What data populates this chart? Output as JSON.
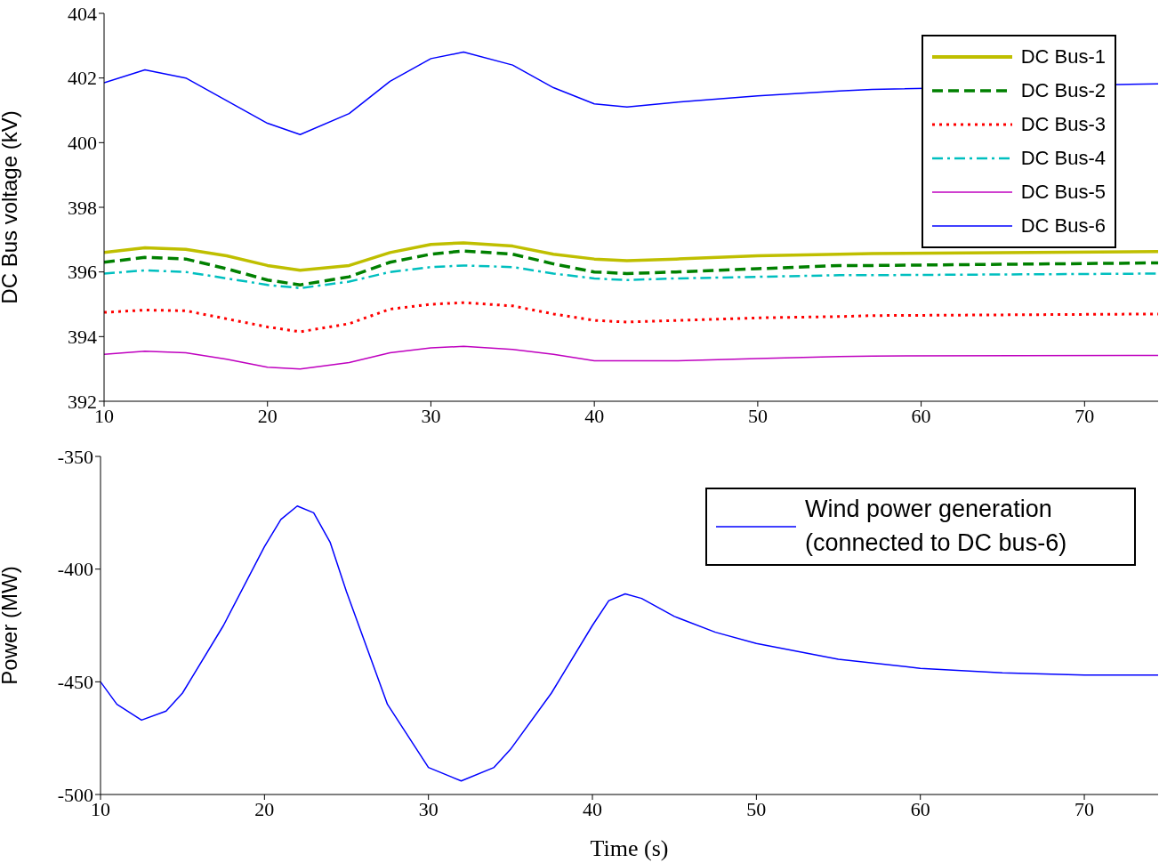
{
  "chart_data": [
    {
      "type": "line",
      "ylabel": "DC Bus voltage (kV)",
      "x": [
        10,
        12.5,
        15,
        17.5,
        20,
        22,
        25,
        27.5,
        30,
        32,
        35,
        37.5,
        40,
        42,
        45,
        50,
        55,
        57,
        74.5
      ],
      "series": [
        {
          "name": "DC Bus-1",
          "color": "#bfbf00",
          "line_style": "solid",
          "values": [
            396.6,
            396.75,
            396.7,
            396.5,
            396.2,
            396.05,
            396.2,
            396.6,
            396.85,
            396.9,
            396.8,
            396.55,
            396.4,
            396.35,
            396.4,
            396.5,
            396.55,
            396.57,
            396.63
          ]
        },
        {
          "name": "DC Bus-2",
          "color": "#008000",
          "line_style": "dashed",
          "values": [
            396.3,
            396.45,
            396.4,
            396.1,
            395.75,
            395.6,
            395.85,
            396.3,
            396.55,
            396.65,
            396.55,
            396.25,
            396.0,
            395.95,
            396.0,
            396.1,
            396.2,
            396.2,
            396.28
          ]
        },
        {
          "name": "DC Bus-3",
          "color": "#ff0000",
          "line_style": "dotted",
          "values": [
            394.75,
            394.82,
            394.8,
            394.55,
            394.3,
            394.15,
            394.4,
            394.85,
            395.0,
            395.05,
            394.95,
            394.7,
            394.5,
            394.45,
            394.5,
            394.58,
            394.62,
            394.65,
            394.7
          ]
        },
        {
          "name": "DC Bus-4",
          "color": "#00bfbf",
          "line_style": "dashdot",
          "values": [
            395.95,
            396.05,
            396.0,
            395.8,
            395.6,
            395.5,
            395.7,
            396.0,
            396.15,
            396.2,
            396.15,
            395.95,
            395.8,
            395.75,
            395.8,
            395.85,
            395.9,
            395.9,
            395.95
          ]
        },
        {
          "name": "DC Bus-5",
          "color": "#bf00bf",
          "line_style": "solid",
          "values": [
            393.45,
            393.55,
            393.5,
            393.3,
            393.05,
            393.0,
            393.2,
            393.5,
            393.65,
            393.7,
            393.6,
            393.45,
            393.25,
            393.25,
            393.25,
            393.32,
            393.38,
            393.4,
            393.42
          ]
        },
        {
          "name": "DC Bus-6",
          "color": "#0000ff",
          "line_style": "solid",
          "values": [
            401.85,
            402.25,
            402.0,
            401.3,
            400.6,
            400.25,
            400.9,
            401.9,
            402.6,
            402.8,
            402.4,
            401.7,
            401.2,
            401.1,
            401.25,
            401.45,
            401.6,
            401.65,
            401.82
          ]
        }
      ],
      "xlim": [
        10,
        74.5
      ],
      "xticks": [
        10,
        20,
        30,
        40,
        50,
        60,
        70
      ],
      "ylim": [
        392,
        404
      ],
      "yticks": [
        392,
        394,
        396,
        398,
        400,
        402,
        404
      ],
      "grid": false,
      "legend": "top right",
      "marker": "none"
    },
    {
      "type": "line",
      "xlabel": "Time (s)",
      "ylabel": "Power (MW)",
      "x": [
        10,
        11,
        12.5,
        14,
        15,
        17.5,
        20,
        21,
        22,
        23,
        24,
        25,
        27.5,
        30,
        32,
        34,
        35,
        37.5,
        40,
        41,
        42,
        43,
        45,
        47.5,
        50,
        55,
        60,
        65,
        70,
        74.5
      ],
      "series": [
        {
          "name": "Wind power generation (connected to DC bus-6)",
          "color": "#0000ff",
          "line_style": "solid",
          "values": [
            -450,
            -460,
            -467,
            -463,
            -455,
            -425,
            -390,
            -378,
            -372,
            -375,
            -388,
            -410,
            -460,
            -488,
            -494,
            -488,
            -480,
            -455,
            -425,
            -414,
            -411,
            -413,
            -421,
            -428,
            -433,
            -440,
            -444,
            -446,
            -447,
            -447
          ]
        }
      ],
      "xlim": [
        10,
        74.5
      ],
      "xticks": [
        10,
        20,
        30,
        40,
        50,
        60,
        70
      ],
      "ylim": [
        -500,
        -350
      ],
      "yticks": [
        -500,
        -450,
        -400,
        -350
      ],
      "grid": false,
      "legend": "top right",
      "marker": "none"
    }
  ]
}
